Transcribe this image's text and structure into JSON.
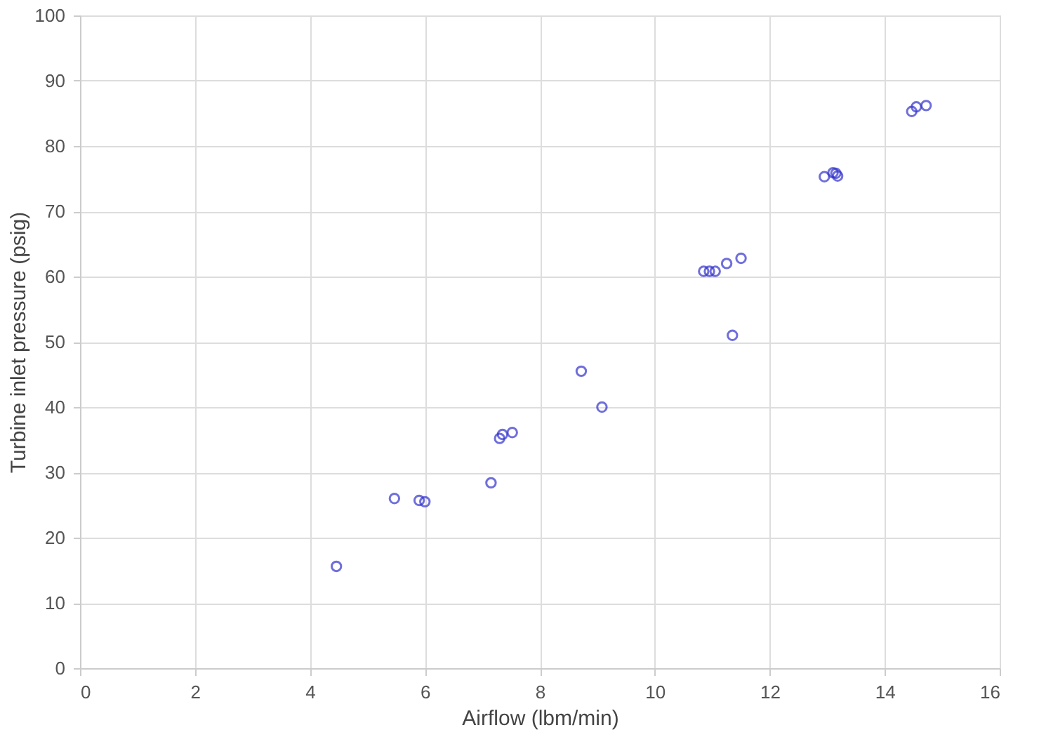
{
  "chart_data": {
    "type": "scatter",
    "xlabel": "Airflow (lbm/min)",
    "ylabel": "Turbine inlet pressure (psig)",
    "x": [
      4.46,
      5.47,
      5.9,
      6.0,
      7.15,
      7.3,
      7.35,
      7.52,
      8.72,
      9.08,
      10.85,
      10.95,
      11.05,
      11.25,
      11.5,
      11.35,
      12.95,
      13.1,
      13.18,
      13.15,
      14.47,
      14.55,
      14.72
    ],
    "series": [
      {
        "color": "#3333cc",
        "values": [
          15.6,
          26.0,
          25.7,
          25.5,
          28.4,
          35.2,
          35.8,
          36.1,
          45.5,
          40.0,
          60.8,
          60.8,
          60.8,
          62.0,
          62.8,
          51.0,
          75.3,
          75.9,
          75.4,
          75.8,
          85.3,
          86.0,
          86.2
        ]
      }
    ],
    "xlim": [
      0,
      16
    ],
    "xticks": [
      0,
      2,
      4,
      6,
      8,
      10,
      12,
      14,
      16
    ],
    "ylim": [
      0,
      100
    ],
    "yticks": [
      0,
      10,
      20,
      30,
      40,
      50,
      60,
      70,
      80,
      90,
      100
    ],
    "grid": true
  }
}
